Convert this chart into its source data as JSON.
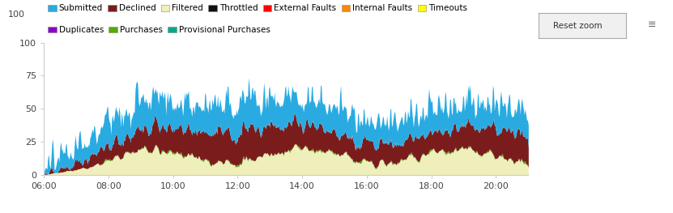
{
  "background_color": "#ffffff",
  "series": [
    {
      "name": "Submitted",
      "color": "#29ABE2"
    },
    {
      "name": "Declined",
      "color": "#7B1C1C"
    },
    {
      "name": "Filtered",
      "color": "#EFEFBB"
    },
    {
      "name": "Throttled",
      "color": "#111111"
    },
    {
      "name": "External Faults",
      "color": "#FF0000"
    },
    {
      "name": "Internal Faults",
      "color": "#FF8800"
    },
    {
      "name": "Timeouts",
      "color": "#FFFF00"
    },
    {
      "name": "Duplicates",
      "color": "#8800CC"
    },
    {
      "name": "Purchases",
      "color": "#55AA00"
    },
    {
      "name": "Provisional Purchases",
      "color": "#00AA88"
    }
  ],
  "legend_row1": [
    "Submitted",
    "Declined",
    "Filtered",
    "Throttled",
    "External Faults",
    "Internal Faults",
    "Timeouts"
  ],
  "legend_row2": [
    "Duplicates",
    "Purchases",
    "Provisional Purchases"
  ],
  "yticks": [
    0,
    25,
    50,
    75,
    100
  ],
  "xtick_labels": [
    "06:00",
    "08:00",
    "10:00",
    "12:00",
    "14:00",
    "16:00",
    "18:00",
    "20:00"
  ],
  "xtick_values": [
    6,
    8,
    10,
    12,
    14,
    16,
    18,
    20
  ],
  "xlim": [
    6,
    21
  ],
  "ylim": [
    0,
    100
  ]
}
